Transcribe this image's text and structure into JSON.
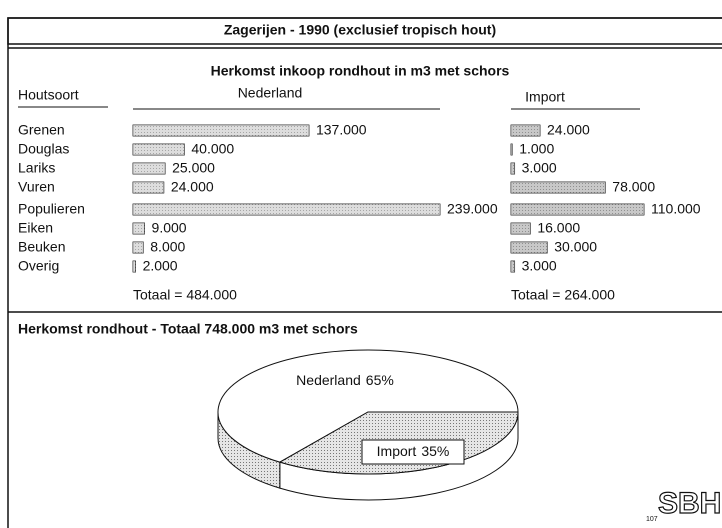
{
  "header": {
    "title": "Zagerijen - 1990 (exclusief tropisch hout)"
  },
  "chart_data": [
    {
      "type": "bar",
      "orientation": "horizontal",
      "title": "Herkomst inkoop rondhout in m3 met schors",
      "category_label": "Houtsoort",
      "categories": [
        "Grenen",
        "Douglas",
        "Lariks",
        "Vuren",
        "Populieren",
        "Eiken",
        "Beuken",
        "Overig"
      ],
      "series": [
        {
          "name": "Nederland",
          "color": "#d4d4d4",
          "values": [
            137000,
            40000,
            25000,
            24000,
            239000,
            9000,
            8000,
            2000
          ],
          "value_labels": [
            "137.000",
            "40.000",
            "25.000",
            "24.000",
            "239.000",
            "9.000",
            "8.000",
            "2.000"
          ],
          "total_label": "Totaal = 484.000"
        },
        {
          "name": "Import",
          "color": "#a9a9a9",
          "values": [
            24000,
            1000,
            3000,
            78000,
            110000,
            16000,
            30000,
            3000
          ],
          "value_labels": [
            "24.000",
            "1.000",
            "3.000",
            "78.000",
            "110.000",
            "16.000",
            "30.000",
            "3.000"
          ],
          "total_label": "Totaal = 264.000"
        }
      ]
    },
    {
      "type": "pie",
      "title": "Herkomst rondhout - Totaal 748.000 m3 met schors",
      "categories": [
        "Nederland",
        "Import"
      ],
      "values": [
        65,
        35
      ],
      "value_labels": [
        "65%",
        "35%"
      ],
      "colors": [
        "#ffffff",
        "#c4c4c4"
      ]
    }
  ],
  "footer": {
    "code": "107",
    "logo": "SBH"
  }
}
